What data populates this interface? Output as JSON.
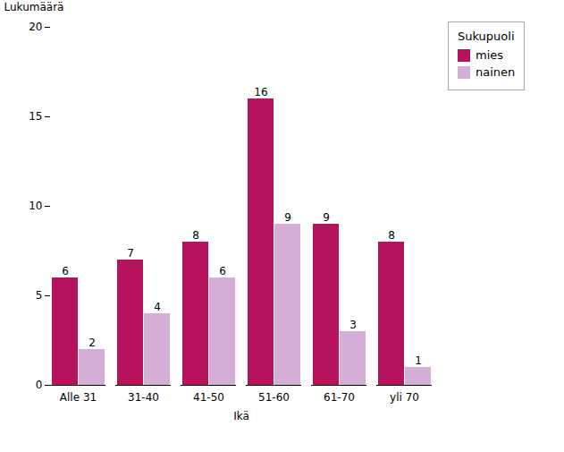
{
  "chart_data": {
    "type": "bar",
    "categories": [
      "Alle 31",
      "31-40",
      "41-50",
      "51-60",
      "61-70",
      "yli 70"
    ],
    "series": [
      {
        "name": "mies",
        "color": "#b5135b",
        "values": [
          6,
          7,
          8,
          16,
          9,
          8
        ]
      },
      {
        "name": "nainen",
        "color": "#d4aed4",
        "values": [
          2,
          4,
          6,
          9,
          3,
          1
        ]
      }
    ],
    "xlabel": "Ikä",
    "ylabel": "Lukumäärä",
    "ylim": [
      0,
      20
    ],
    "yticks": [
      0,
      5,
      10,
      15,
      20
    ],
    "legend_title": "Sukupuoli",
    "legend": "right",
    "data_labels": true,
    "grid": false
  }
}
